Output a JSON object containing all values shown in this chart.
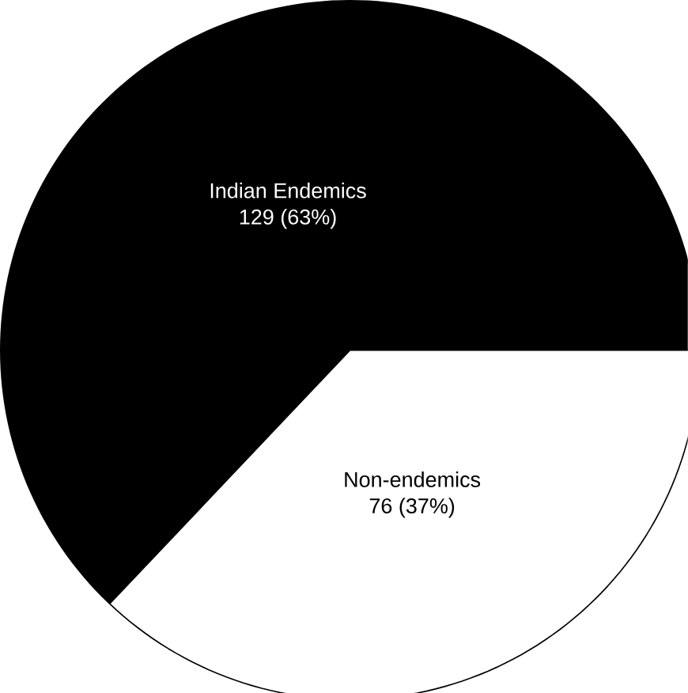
{
  "chart_data": {
    "type": "pie",
    "categories": [
      "Indian Endemics",
      "Non-endemics"
    ],
    "values": [
      129,
      76
    ],
    "value_labels": [
      "129 (63%)",
      "76 (37%)"
    ],
    "colors": [
      "#000000",
      "#ffffff"
    ]
  }
}
